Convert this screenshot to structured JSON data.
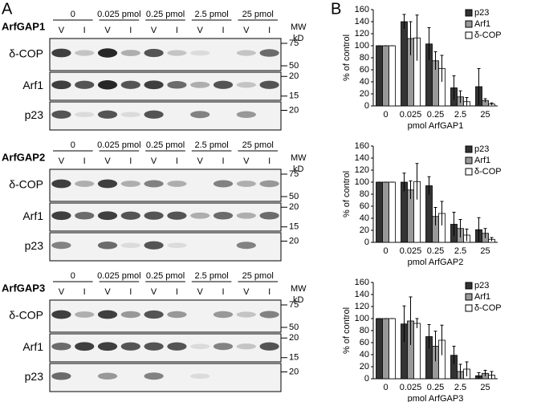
{
  "panel_a": {
    "label": "A",
    "blots": [
      {
        "title": "ArfGAP1",
        "mw_header": [
          "MW",
          "kD"
        ],
        "doses": [
          "0",
          "0.025 pmol",
          "0.25 pmol",
          "2.5 pmol",
          "25 pmol"
        ],
        "lanes": [
          "V",
          "I",
          "V",
          "I",
          "V",
          "I",
          "V",
          "I",
          "V",
          "I"
        ],
        "rows": [
          {
            "name": "δ-COP",
            "markers": [
              75,
              50
            ]
          },
          {
            "name": "Arf1",
            "markers": [
              20,
              15
            ]
          },
          {
            "name": "p23",
            "markers": [
              20
            ]
          }
        ]
      },
      {
        "title": "ArfGAP2",
        "mw_header": [
          "MW",
          "kD"
        ],
        "doses": [
          "0",
          "0.025 pmol",
          "0.25 pmol",
          "2.5 pmol",
          "25 pmol"
        ],
        "lanes": [
          "V",
          "I",
          "V",
          "I",
          "V",
          "I",
          "V",
          "I",
          "V",
          "I"
        ],
        "rows": [
          {
            "name": "δ-COP",
            "markers": [
              75,
              50
            ]
          },
          {
            "name": "Arf1",
            "markers": [
              20,
              15
            ]
          },
          {
            "name": "p23",
            "markers": [
              20
            ]
          }
        ]
      },
      {
        "title": "ArfGAP3",
        "mw_header": [
          "MW",
          "kD"
        ],
        "doses": [
          "0",
          "0.025 pmol",
          "0.25 pmol",
          "2.5 pmol",
          "25 pmol"
        ],
        "lanes": [
          "V",
          "I",
          "V",
          "I",
          "V",
          "I",
          "V",
          "I",
          "V",
          "I"
        ],
        "rows": [
          {
            "name": "δ-COP",
            "markers": [
              75,
              50
            ]
          },
          {
            "name": "Arf1",
            "markers": [
              20,
              15
            ]
          },
          {
            "name": "p23",
            "markers": [
              20
            ]
          }
        ]
      }
    ]
  },
  "panel_b": {
    "label": "B"
  },
  "chart_data": [
    {
      "type": "bar",
      "x_label": "pmol ArfGAP1",
      "y_label": "% of control",
      "categories": [
        "0",
        "0.025",
        "0.25",
        "2.5",
        "25"
      ],
      "ylim": [
        0,
        160
      ],
      "yticks": [
        0,
        20,
        40,
        60,
        80,
        100,
        120,
        140,
        160
      ],
      "legend": "upper right",
      "series": [
        {
          "name": "p23",
          "color": "#333333",
          "values": [
            100,
            140,
            103,
            30,
            32
          ],
          "errors": [
            0,
            12,
            27,
            20,
            30
          ]
        },
        {
          "name": "Arf1",
          "color": "#999999",
          "values": [
            100,
            112,
            75,
            15,
            9
          ],
          "errors": [
            0,
            28,
            15,
            10,
            3
          ]
        },
        {
          "name": "δ-COP",
          "color": "#ffffff",
          "values": [
            100,
            113,
            62,
            7,
            3
          ],
          "errors": [
            0,
            38,
            22,
            7,
            2
          ]
        }
      ]
    },
    {
      "type": "bar",
      "x_label": "pmol ArfGAP2",
      "y_label": "% of control",
      "categories": [
        "0",
        "0.025",
        "0.25",
        "2.5",
        "25"
      ],
      "ylim": [
        0,
        160
      ],
      "yticks": [
        0,
        20,
        40,
        60,
        80,
        100,
        120,
        140,
        160
      ],
      "legend": "upper right",
      "series": [
        {
          "name": "p23",
          "color": "#333333",
          "values": [
            100,
            100,
            94,
            30,
            21
          ],
          "errors": [
            0,
            15,
            15,
            20,
            20
          ]
        },
        {
          "name": "Arf1",
          "color": "#999999",
          "values": [
            100,
            87,
            43,
            23,
            15
          ],
          "errors": [
            0,
            15,
            15,
            15,
            8
          ]
        },
        {
          "name": "δ-COP",
          "color": "#ffffff",
          "values": [
            100,
            101,
            48,
            12,
            5
          ],
          "errors": [
            0,
            30,
            20,
            10,
            3
          ]
        }
      ]
    },
    {
      "type": "bar",
      "x_label": "pmol ArfGAP3",
      "y_label": "% of control",
      "categories": [
        "0",
        "0.025",
        "0.25",
        "2.5",
        "25"
      ],
      "ylim": [
        0,
        160
      ],
      "yticks": [
        0,
        20,
        40,
        60,
        80,
        100,
        120,
        140,
        160
      ],
      "legend": "upper right",
      "series": [
        {
          "name": "p23",
          "color": "#333333",
          "values": [
            100,
            91,
            70,
            39,
            5
          ],
          "errors": [
            0,
            30,
            20,
            15,
            5
          ]
        },
        {
          "name": "Arf1",
          "color": "#999999",
          "values": [
            100,
            96,
            54,
            12,
            9
          ],
          "errors": [
            0,
            40,
            25,
            12,
            5
          ]
        },
        {
          "name": "δ-COP",
          "color": "#ffffff",
          "values": [
            100,
            92,
            64,
            16,
            6
          ],
          "errors": [
            0,
            8,
            25,
            12,
            6
          ]
        }
      ]
    }
  ]
}
